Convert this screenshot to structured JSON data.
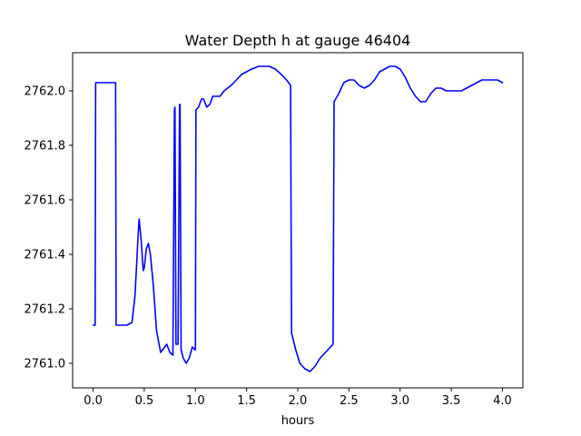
{
  "chart_data": {
    "type": "line",
    "title": "Water Depth h at gauge 46404",
    "xlabel": "hours",
    "ylabel": "",
    "xlim": [
      -0.2,
      4.2
    ],
    "ylim": [
      2760.91,
      2762.14
    ],
    "x_ticks": [
      0.0,
      0.5,
      1.0,
      1.5,
      2.0,
      2.5,
      3.0,
      3.5,
      4.0
    ],
    "x_tick_labels": [
      "0.0",
      "0.5",
      "1.0",
      "1.5",
      "2.0",
      "2.5",
      "3.0",
      "3.5",
      "4.0"
    ],
    "y_ticks": [
      2761.0,
      2761.2,
      2761.4,
      2761.6,
      2761.8,
      2762.0
    ],
    "y_tick_labels": [
      "2761.0",
      "2761.2",
      "2761.4",
      "2761.6",
      "2761.8",
      "2762.0"
    ],
    "grid": false,
    "legend": "none",
    "series": [
      {
        "color": "#0000ff",
        "x": [
          0.0,
          0.02,
          0.025,
          0.22,
          0.225,
          0.28,
          0.33,
          0.38,
          0.41,
          0.44,
          0.45,
          0.47,
          0.49,
          0.5,
          0.52,
          0.54,
          0.56,
          0.59,
          0.62,
          0.66,
          0.7,
          0.72,
          0.75,
          0.78,
          0.795,
          0.8,
          0.805,
          0.81,
          0.83,
          0.845,
          0.85,
          0.855,
          0.86,
          0.88,
          0.91,
          0.94,
          0.97,
          0.995,
          1.0,
          1.005,
          1.03,
          1.06,
          1.08,
          1.11,
          1.14,
          1.17,
          1.2,
          1.24,
          1.28,
          1.35,
          1.45,
          1.55,
          1.62,
          1.68,
          1.72,
          1.78,
          1.84,
          1.89,
          1.93,
          1.935,
          1.94,
          1.98,
          2.02,
          2.07,
          2.12,
          2.17,
          2.22,
          2.27,
          2.32,
          2.345,
          2.35,
          2.355,
          2.4,
          2.45,
          2.5,
          2.55,
          2.6,
          2.65,
          2.7,
          2.75,
          2.8,
          2.85,
          2.9,
          2.95,
          3.0,
          3.05,
          3.1,
          3.15,
          3.2,
          3.25,
          3.3,
          3.35,
          3.4,
          3.45,
          3.5,
          3.55,
          3.6,
          3.65,
          3.7,
          3.75,
          3.8,
          3.85,
          3.9,
          3.95,
          4.0
        ],
        "values": [
          2761.14,
          2761.14,
          2762.03,
          2762.03,
          2761.14,
          2761.14,
          2761.14,
          2761.15,
          2761.25,
          2761.47,
          2761.53,
          2761.45,
          2761.34,
          2761.35,
          2761.42,
          2761.44,
          2761.4,
          2761.28,
          2761.12,
          2761.04,
          2761.06,
          2761.07,
          2761.04,
          2761.03,
          2761.93,
          2761.94,
          2761.5,
          2761.07,
          2761.07,
          2761.95,
          2761.95,
          2761.5,
          2761.05,
          2761.02,
          2761.0,
          2761.02,
          2761.06,
          2761.05,
          2761.05,
          2761.93,
          2761.94,
          2761.97,
          2761.97,
          2761.94,
          2761.95,
          2761.98,
          2761.98,
          2761.98,
          2762.0,
          2762.02,
          2762.06,
          2762.08,
          2762.09,
          2762.09,
          2762.09,
          2762.08,
          2762.06,
          2762.04,
          2762.02,
          2761.5,
          2761.11,
          2761.05,
          2761.0,
          2760.98,
          2760.97,
          2760.99,
          2761.02,
          2761.04,
          2761.06,
          2761.07,
          2761.5,
          2761.96,
          2761.99,
          2762.03,
          2762.04,
          2762.04,
          2762.02,
          2762.01,
          2762.02,
          2762.04,
          2762.07,
          2762.08,
          2762.09,
          2762.09,
          2762.08,
          2762.05,
          2762.01,
          2761.98,
          2761.96,
          2761.96,
          2761.99,
          2762.01,
          2762.01,
          2762.0,
          2762.0,
          2762.0,
          2762.0,
          2762.01,
          2762.02,
          2762.03,
          2762.04,
          2762.04,
          2762.04,
          2762.04,
          2762.03
        ]
      }
    ]
  }
}
